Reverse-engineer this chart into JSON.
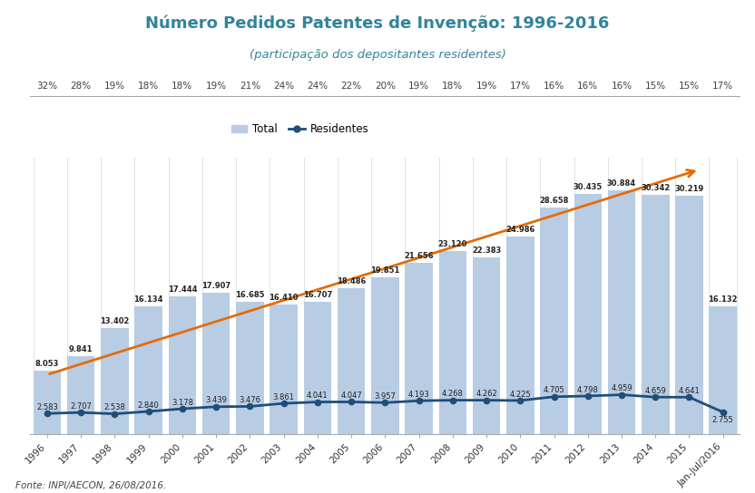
{
  "title": "Número Pedidos Patentes de Invenção: 1996-2016",
  "subtitle": "(participação dos depositantes residentes)",
  "source": "Fonte: INPI/AECON, 26/08/2016.",
  "years": [
    "1996",
    "1997",
    "1998",
    "1999",
    "2000",
    "2001",
    "2002",
    "2003",
    "2004",
    "2005",
    "2006",
    "2007",
    "2008",
    "2009",
    "2010",
    "2011",
    "2012",
    "2013",
    "2014",
    "2015",
    "Jan-Jul/2016"
  ],
  "total": [
    8053,
    9841,
    13402,
    16134,
    17444,
    17907,
    16685,
    16410,
    16707,
    18486,
    19851,
    21656,
    23120,
    22383,
    24986,
    28658,
    30435,
    30884,
    30342,
    30219,
    16132
  ],
  "residentes": [
    2583,
    2707,
    2538,
    2840,
    3178,
    3439,
    3476,
    3861,
    4041,
    4047,
    3957,
    4193,
    4268,
    4262,
    4225,
    4705,
    4798,
    4959,
    4659,
    4641,
    2755
  ],
  "percentages": [
    "32%",
    "28%",
    "19%",
    "18%",
    "18%",
    "19%",
    "21%",
    "24%",
    "24%",
    "22%",
    "20%",
    "19%",
    "18%",
    "19%",
    "17%",
    "16%",
    "16%",
    "16%",
    "15%",
    "15%",
    "17%"
  ],
  "bar_color": "#b8cce4",
  "line_color": "#1f4e79",
  "arrow_color": "#e36c09",
  "title_color": "#31849b",
  "pct_color": "#404040",
  "bg_color": "#ffffff",
  "separator_color": "#aaaaaa"
}
